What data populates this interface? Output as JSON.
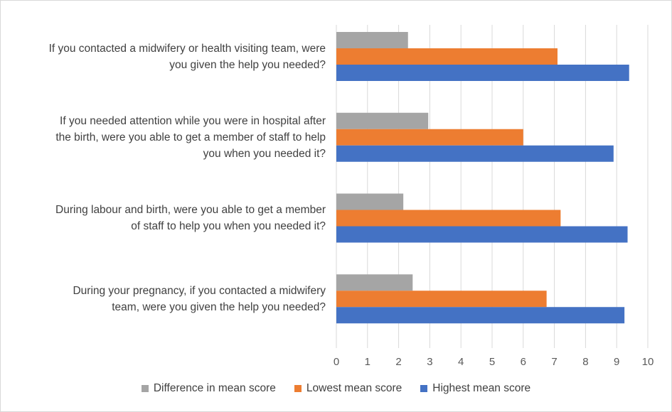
{
  "chart_data": {
    "type": "bar",
    "orientation": "horizontal",
    "categories": [
      "If you contacted a midwifery or health visiting team, were you given the help you needed?",
      "If you needed attention while you were in hospital after the birth, were you able to get a member of staff to help you when you needed it?",
      "During labour and birth, were you able to get a member of staff to help you when you needed it?",
      "During your pregnancy, if you contacted a midwifery team, were you given the help you needed?"
    ],
    "category_lines": [
      [
        "If you contacted a midwifery or health visiting team, were",
        "you given the help you needed?"
      ],
      [
        "If you needed attention while you were in hospital after",
        "the birth, were you able to get a member of staff to help",
        "you when you needed it?"
      ],
      [
        "During labour and birth, were you able to get a member",
        "of staff to help you when you needed it?"
      ],
      [
        "During your pregnancy, if you contacted a midwifery",
        "team, were you given the help you needed?"
      ]
    ],
    "series": [
      {
        "name": "Difference in mean score",
        "color": "#a5a5a5",
        "values": [
          2.3,
          2.95,
          2.15,
          2.45
        ]
      },
      {
        "name": "Lowest mean score",
        "color": "#ed7d31",
        "values": [
          7.1,
          6.0,
          7.2,
          6.75
        ]
      },
      {
        "name": "Highest mean score",
        "color": "#4472c4",
        "values": [
          9.4,
          8.9,
          9.35,
          9.25
        ]
      }
    ],
    "xlim": [
      0,
      10
    ],
    "xticks": [
      "0",
      "1",
      "2",
      "3",
      "4",
      "5",
      "6",
      "7",
      "8",
      "9",
      "10"
    ],
    "grid": true,
    "legend_position": "bottom"
  }
}
